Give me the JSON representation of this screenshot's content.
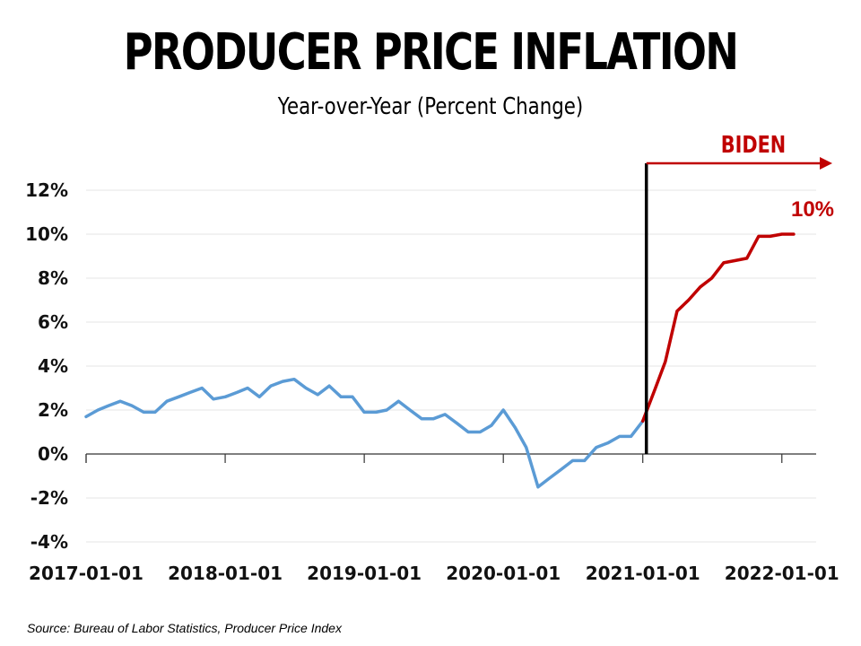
{
  "title": "PRODUCER PRICE INFLATION",
  "subtitle": "Year-over-Year (Percent Change)",
  "source": "Source: Bureau of Labor Statistics, Producer Price Index",
  "colors": {
    "pre": "#5b9bd5",
    "post": "#c00000",
    "marker": "#000000",
    "grid": "#e6e6e6"
  },
  "chart_data": {
    "type": "line",
    "title": "PRODUCER PRICE INFLATION",
    "subtitle": "Year-over-Year (Percent Change)",
    "xlabel": "",
    "ylabel": "",
    "ylim": [
      -4,
      12
    ],
    "xlim": [
      "2017-01-01",
      "2022-04-01"
    ],
    "grid": "horizontal",
    "yticks": [
      "12%",
      "10%",
      "8%",
      "6%",
      "4%",
      "2%",
      "0%",
      "-2%",
      "-4%"
    ],
    "ytick_values": [
      12,
      10,
      8,
      6,
      4,
      2,
      0,
      -2,
      -4
    ],
    "xticks": [
      "2017-01-01",
      "2018-01-01",
      "2019-01-01",
      "2020-01-01",
      "2021-01-01",
      "2022-01-01"
    ],
    "series": [
      {
        "color": "#5b9bd5",
        "x": [
          "2017-01-01",
          "2017-02-01",
          "2017-03-01",
          "2017-04-01",
          "2017-05-01",
          "2017-06-01",
          "2017-07-01",
          "2017-08-01",
          "2017-09-01",
          "2017-10-01",
          "2017-11-01",
          "2017-12-01",
          "2018-01-01",
          "2018-02-01",
          "2018-03-01",
          "2018-04-01",
          "2018-05-01",
          "2018-06-01",
          "2018-07-01",
          "2018-08-01",
          "2018-09-01",
          "2018-10-01",
          "2018-11-01",
          "2018-12-01",
          "2019-01-01",
          "2019-02-01",
          "2019-03-01",
          "2019-04-01",
          "2019-05-01",
          "2019-06-01",
          "2019-07-01",
          "2019-08-01",
          "2019-09-01",
          "2019-10-01",
          "2019-11-01",
          "2019-12-01",
          "2020-01-01",
          "2020-02-01",
          "2020-03-01",
          "2020-04-01",
          "2020-05-01",
          "2020-06-01",
          "2020-07-01",
          "2020-08-01",
          "2020-09-01",
          "2020-10-01",
          "2020-11-01",
          "2020-12-01",
          "2021-01-01"
        ],
        "values": [
          1.7,
          2.0,
          2.2,
          2.4,
          2.2,
          1.9,
          1.9,
          2.4,
          2.6,
          2.8,
          3.0,
          2.5,
          2.6,
          2.8,
          3.0,
          2.6,
          3.1,
          3.3,
          3.4,
          3.0,
          2.7,
          3.1,
          2.6,
          2.6,
          1.9,
          1.9,
          2.0,
          2.4,
          2.0,
          1.6,
          1.6,
          1.8,
          1.4,
          1.0,
          1.0,
          1.3,
          2.0,
          1.2,
          0.3,
          -1.5,
          -1.1,
          -0.7,
          -0.3,
          -0.3,
          0.3,
          0.5,
          0.8,
          0.8,
          1.5
        ]
      },
      {
        "color": "#c00000",
        "x": [
          "2021-01-01",
          "2021-02-01",
          "2021-03-01",
          "2021-04-01",
          "2021-05-01",
          "2021-06-01",
          "2021-07-01",
          "2021-08-01",
          "2021-09-01",
          "2021-10-01",
          "2021-11-01",
          "2021-12-01",
          "2022-01-01",
          "2022-02-01"
        ],
        "values": [
          1.5,
          2.9,
          4.2,
          6.5,
          7.0,
          7.6,
          8.0,
          8.7,
          8.8,
          8.9,
          9.9,
          9.9,
          10.0,
          10.0
        ]
      }
    ],
    "annotations": [
      {
        "text": "BIDEN",
        "at": "2021-01-01"
      },
      {
        "text": "10%",
        "at": "2022-02-01"
      }
    ]
  }
}
